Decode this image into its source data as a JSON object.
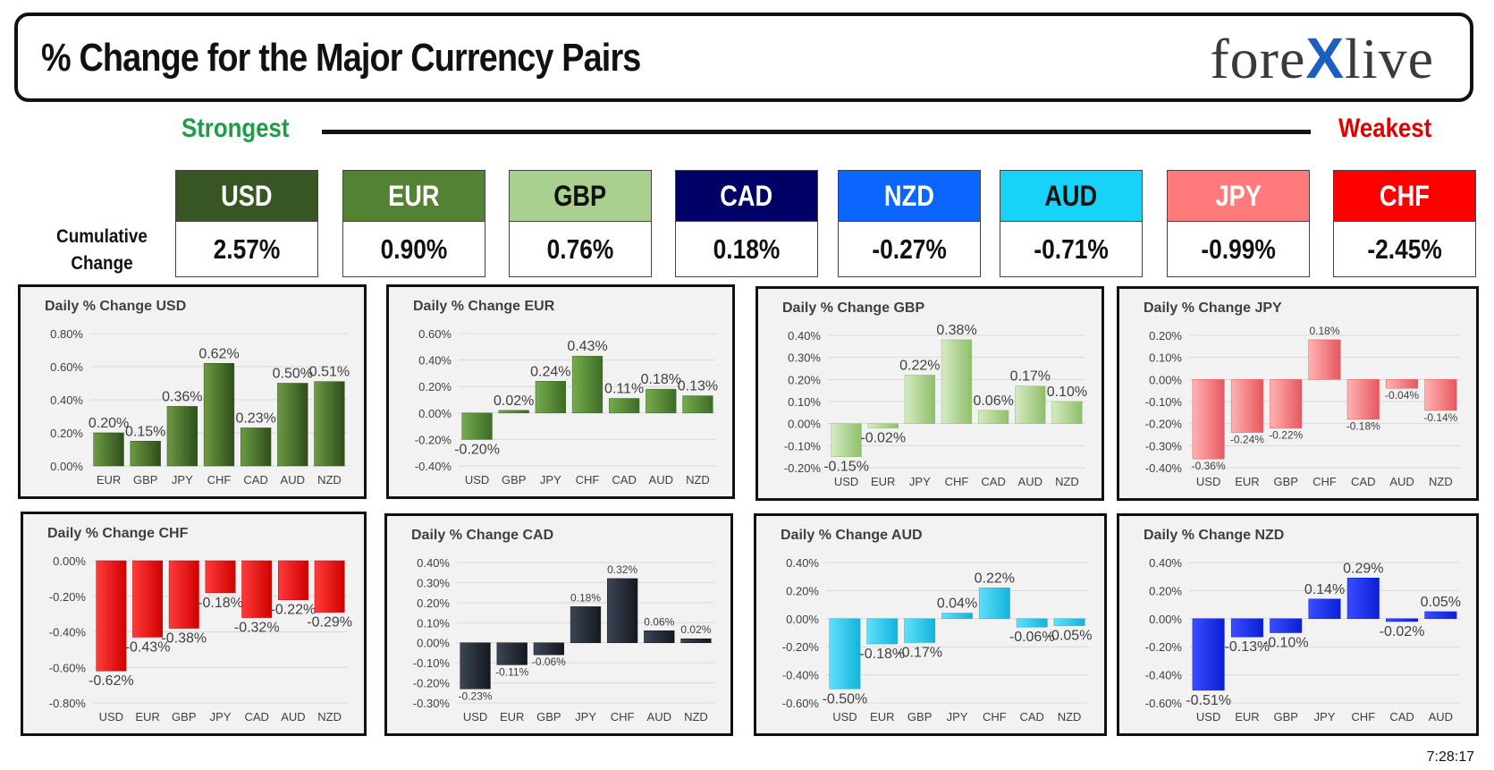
{
  "header": {
    "title": "% Change for the Major Currency Pairs",
    "logo_left": "fore",
    "logo_x": "X",
    "logo_right": "live"
  },
  "ranking": {
    "strongest_label": "Strongest",
    "weakest_label": "Weakest",
    "cumulative_label_line1": "Cumulative",
    "cumulative_label_line2": "Change",
    "cards": [
      {
        "ccy": "USD",
        "value": "2.57%",
        "bg": "#375623",
        "fg": "#ffffff"
      },
      {
        "ccy": "EUR",
        "value": "0.90%",
        "bg": "#548235",
        "fg": "#ffffff"
      },
      {
        "ccy": "GBP",
        "value": "0.76%",
        "bg": "#a9d08e",
        "fg": "#111111"
      },
      {
        "ccy": "CAD",
        "value": "0.18%",
        "bg": "#000066",
        "fg": "#ffffff"
      },
      {
        "ccy": "NZD",
        "value": "-0.27%",
        "bg": "#0a66ff",
        "fg": "#ffffff"
      },
      {
        "ccy": "AUD",
        "value": "-0.71%",
        "bg": "#19d2f7",
        "fg": "#111111"
      },
      {
        "ccy": "JPY",
        "value": "-0.99%",
        "bg": "#ff7b7b",
        "fg": "#ffffff"
      },
      {
        "ccy": "CHF",
        "value": "-2.45%",
        "bg": "#ff0000",
        "fg": "#ffffff"
      }
    ]
  },
  "timestamp": "7:28:17",
  "chart_data": [
    {
      "type": "bar",
      "title": "Daily % Change USD",
      "categories": [
        "EUR",
        "GBP",
        "JPY",
        "CHF",
        "CAD",
        "AUD",
        "NZD"
      ],
      "values": [
        0.2,
        0.15,
        0.36,
        0.62,
        0.23,
        0.5,
        0.51
      ],
      "labels": [
        "0.20%",
        "0.15%",
        "0.36%",
        "0.62%",
        "0.23%",
        "0.50%",
        "0.51%"
      ],
      "ylim": [
        0,
        0.8
      ],
      "yticks": [
        0,
        0.2,
        0.4,
        0.6,
        0.8
      ],
      "ytick_labels": [
        "0.00%",
        "0.20%",
        "0.40%",
        "0.60%",
        "0.80%"
      ],
      "colors": [
        "#6c9a45",
        "#2f4e1a"
      ],
      "label_size": 16
    },
    {
      "type": "bar",
      "title": "Daily % Change EUR",
      "categories": [
        "USD",
        "GBP",
        "JPY",
        "CHF",
        "CAD",
        "AUD",
        "NZD"
      ],
      "values": [
        -0.2,
        0.02,
        0.24,
        0.43,
        0.11,
        0.18,
        0.13
      ],
      "labels": [
        "-0.20%",
        "0.02%",
        "0.24%",
        "0.43%",
        "0.11%",
        "0.18%",
        "0.13%"
      ],
      "ylim": [
        -0.4,
        0.6
      ],
      "yticks": [
        -0.4,
        -0.2,
        0,
        0.2,
        0.4,
        0.6
      ],
      "ytick_labels": [
        "-0.40%",
        "-0.20%",
        "0.00%",
        "0.20%",
        "0.40%",
        "0.60%"
      ],
      "colors": [
        "#75ab4e",
        "#3e6b25"
      ],
      "label_size": 16
    },
    {
      "type": "bar",
      "title": "Daily % Change GBP",
      "categories": [
        "USD",
        "EUR",
        "JPY",
        "CHF",
        "CAD",
        "AUD",
        "NZD"
      ],
      "values": [
        -0.15,
        -0.02,
        0.22,
        0.38,
        0.06,
        0.17,
        0.1
      ],
      "labels": [
        "-0.15%",
        "-0.02%",
        "0.22%",
        "0.38%",
        "0.06%",
        "0.17%",
        "0.10%"
      ],
      "ylim": [
        -0.2,
        0.4
      ],
      "yticks": [
        -0.2,
        -0.1,
        0,
        0.1,
        0.2,
        0.3,
        0.4
      ],
      "ytick_labels": [
        "-0.20%",
        "-0.10%",
        "0.00%",
        "0.10%",
        "0.20%",
        "0.30%",
        "0.40%"
      ],
      "colors": [
        "#d5ebc3",
        "#8fbf6a"
      ],
      "label_size": 16
    },
    {
      "type": "bar",
      "title": "Daily % Change JPY",
      "categories": [
        "USD",
        "EUR",
        "GBP",
        "CHF",
        "CAD",
        "AUD",
        "NZD"
      ],
      "values": [
        -0.36,
        -0.24,
        -0.22,
        0.18,
        -0.18,
        -0.04,
        -0.14
      ],
      "labels": [
        "-0.36%",
        "-0.24%",
        "-0.22%",
        "0.18%",
        "-0.18%",
        "-0.04%",
        "-0.14%"
      ],
      "ylim": [
        -0.4,
        0.2
      ],
      "yticks": [
        -0.4,
        -0.3,
        -0.2,
        -0.1,
        0,
        0.1,
        0.2
      ],
      "ytick_labels": [
        "-0.40%",
        "-0.30%",
        "-0.20%",
        "-0.10%",
        "0.00%",
        "0.10%",
        "0.20%"
      ],
      "colors": [
        "#ffb3b3",
        "#e5585f"
      ],
      "label_size": 12
    },
    {
      "type": "bar",
      "title": "Daily % Change CHF",
      "categories": [
        "USD",
        "EUR",
        "GBP",
        "JPY",
        "CAD",
        "AUD",
        "NZD"
      ],
      "values": [
        -0.62,
        -0.43,
        -0.38,
        -0.18,
        -0.32,
        -0.22,
        -0.29
      ],
      "labels": [
        "-0.62%",
        "-0.43%",
        "-0.38%",
        "-0.18%",
        "-0.32%",
        "-0.22%",
        "-0.29%"
      ],
      "ylim": [
        -0.8,
        0
      ],
      "yticks": [
        -0.8,
        -0.6,
        -0.4,
        -0.2,
        0
      ],
      "ytick_labels": [
        "-0.80%",
        "-0.60%",
        "-0.40%",
        "-0.20%",
        "0.00%"
      ],
      "colors": [
        "#ff3b3b",
        "#d00000"
      ],
      "label_size": 16
    },
    {
      "type": "bar",
      "title": "Daily % Change CAD",
      "categories": [
        "USD",
        "EUR",
        "GBP",
        "JPY",
        "CHF",
        "AUD",
        "NZD"
      ],
      "values": [
        -0.23,
        -0.11,
        -0.06,
        0.18,
        0.32,
        0.06,
        0.02
      ],
      "labels": [
        "-0.23%",
        "-0.11%",
        "-0.06%",
        "0.18%",
        "0.32%",
        "0.06%",
        "0.02%"
      ],
      "ylim": [
        -0.3,
        0.4
      ],
      "yticks": [
        -0.3,
        -0.2,
        -0.1,
        0,
        0.1,
        0.2,
        0.3,
        0.4
      ],
      "ytick_labels": [
        "-0.30%",
        "-0.20%",
        "-0.10%",
        "0.00%",
        "0.10%",
        "0.20%",
        "0.30%",
        "0.40%"
      ],
      "colors": [
        "#3d4555",
        "#141820"
      ],
      "label_size": 12
    },
    {
      "type": "bar",
      "title": "Daily % Change AUD",
      "categories": [
        "USD",
        "EUR",
        "GBP",
        "JPY",
        "CHF",
        "CAD",
        "NZD"
      ],
      "values": [
        -0.5,
        -0.18,
        -0.17,
        0.04,
        0.22,
        -0.06,
        -0.05
      ],
      "labels": [
        "-0.50%",
        "-0.18%",
        "-0.17%",
        "0.04%",
        "0.22%",
        "-0.06%",
        "-0.05%"
      ],
      "ylim": [
        -0.6,
        0.4
      ],
      "yticks": [
        -0.6,
        -0.4,
        -0.2,
        0,
        0.2,
        0.4
      ],
      "ytick_labels": [
        "-0.60%",
        "-0.40%",
        "-0.20%",
        "0.00%",
        "0.20%",
        "0.40%"
      ],
      "colors": [
        "#5fe0fa",
        "#12b3dc"
      ],
      "label_size": 16
    },
    {
      "type": "bar",
      "title": "Daily % Change NZD",
      "categories": [
        "USD",
        "EUR",
        "GBP",
        "JPY",
        "CHF",
        "CAD",
        "AUD"
      ],
      "values": [
        -0.51,
        -0.13,
        -0.1,
        0.14,
        0.29,
        -0.02,
        0.05
      ],
      "labels": [
        "-0.51%",
        "-0.13%",
        "-0.10%",
        "0.14%",
        "0.29%",
        "-0.02%",
        "0.05%"
      ],
      "ylim": [
        -0.6,
        0.4
      ],
      "yticks": [
        -0.6,
        -0.4,
        -0.2,
        0,
        0.2,
        0.4
      ],
      "ytick_labels": [
        "-0.60%",
        "-0.40%",
        "-0.20%",
        "0.00%",
        "0.20%",
        "0.40%"
      ],
      "colors": [
        "#3a4dff",
        "#0a1fd6"
      ],
      "label_size": 16
    }
  ]
}
